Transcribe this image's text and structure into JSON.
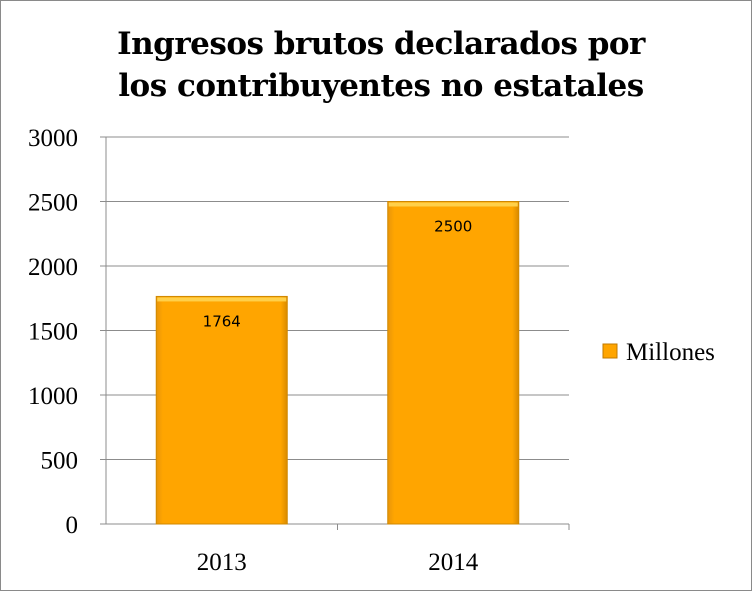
{
  "chart_data": {
    "type": "bar",
    "title": "Ingresos brutos declarados por los contribuyentes no estatales",
    "title_lines": [
      "Ingresos brutos declarados por",
      "los contribuyentes no estatales"
    ],
    "categories": [
      "2013",
      "2014"
    ],
    "series": [
      {
        "name": "Millones",
        "values": [
          1764,
          2500
        ],
        "color": "#FFA500"
      }
    ],
    "data_labels": [
      "1764",
      "2500"
    ],
    "ylim": [
      0,
      3000
    ],
    "yticks": [
      0,
      500,
      1000,
      1500,
      2000,
      2500,
      3000
    ],
    "ytick_labels": [
      "0",
      "500",
      "1000",
      "1500",
      "2000",
      "2500",
      "3000"
    ],
    "grid": true,
    "legend_position": "right",
    "xlabel": "",
    "ylabel": ""
  }
}
